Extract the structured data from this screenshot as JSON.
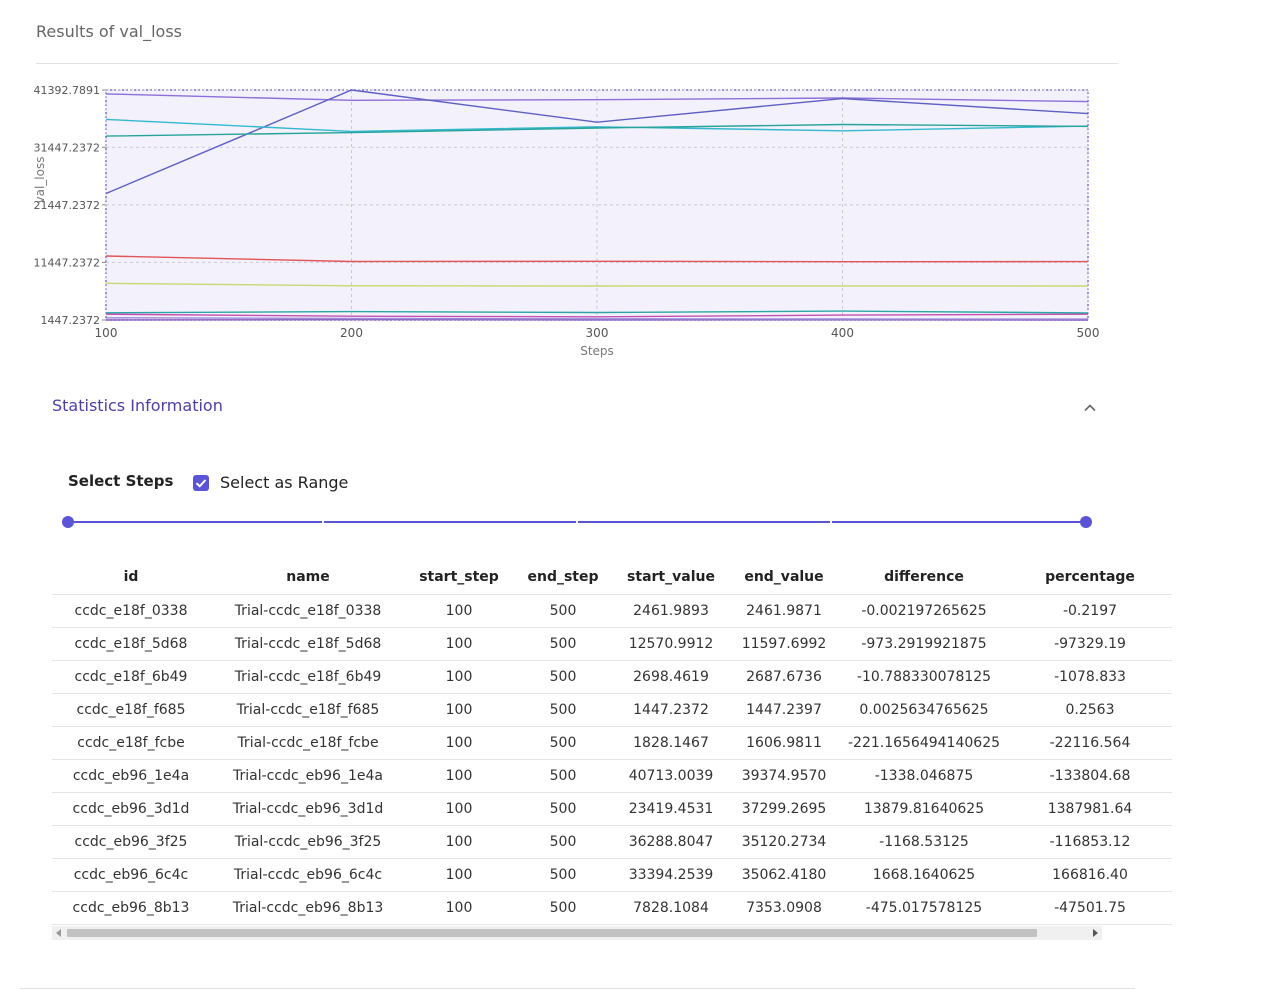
{
  "page": {
    "title": "Results of val_loss"
  },
  "chart_data": {
    "type": "line",
    "xlabel": "Steps",
    "ylabel": "val_loss",
    "x": [
      100,
      200,
      300,
      400,
      500
    ],
    "x_ticks": [
      "100",
      "200",
      "300",
      "400",
      "500"
    ],
    "y_ticks": [
      "41392.7891",
      "31447.2372",
      "21447.2372",
      "11447.2372",
      "1447.2372"
    ],
    "ylim": [
      1447.2372,
      41392.7891
    ],
    "grid": true,
    "series": [
      {
        "color": "#c44fb0",
        "values": [
          2461.9893,
          2100,
          2000,
          2300,
          2461.9871
        ]
      },
      {
        "color": "#e25555",
        "values": [
          12570.9912,
          11600,
          11650,
          11580,
          11597.6992
        ]
      },
      {
        "color": "#2ca6a4",
        "values": [
          2698.4619,
          2900,
          2750,
          3000,
          2687.6736
        ]
      },
      {
        "color": "#8b5fbf",
        "values": [
          1447.2372,
          1500,
          1460,
          1480,
          1447.2397
        ]
      },
      {
        "color": "#c8d96f",
        "values": [
          7828.1084,
          7380,
          7360,
          7370,
          7353.0908
        ]
      },
      {
        "color": "#8c6fd8",
        "values": [
          40713.0039,
          39600,
          39700,
          40000,
          39374.957
        ]
      },
      {
        "color": "#5f5fc4",
        "values": [
          23419.4531,
          41392.7891,
          35800,
          39900,
          37299.2695
        ]
      },
      {
        "color": "#35b8cf",
        "values": [
          36288.8047,
          34200,
          35000,
          34300,
          35120.2734
        ]
      },
      {
        "color": "#27a39a",
        "values": [
          33394.2539,
          34000,
          34800,
          35400,
          35062.418
        ]
      },
      {
        "color": "#9c8ad9",
        "values": [
          1828.1467,
          1700,
          1650,
          1620,
          1606.9811
        ]
      }
    ]
  },
  "stats": {
    "title": "Statistics Information"
  },
  "steps": {
    "label": "Select Steps",
    "range_label": "Select as Range",
    "range_checked": true
  },
  "table": {
    "columns": [
      "id",
      "name",
      "start_step",
      "end_step",
      "start_value",
      "end_value",
      "difference",
      "percentage"
    ],
    "rows": [
      [
        "ccdc_e18f_0338",
        "Trial-ccdc_e18f_0338",
        "100",
        "500",
        "2461.9893",
        "2461.9871",
        "-0.002197265625",
        "-0.2197"
      ],
      [
        "ccdc_e18f_5d68",
        "Trial-ccdc_e18f_5d68",
        "100",
        "500",
        "12570.9912",
        "11597.6992",
        "-973.2919921875",
        "-97329.19"
      ],
      [
        "ccdc_e18f_6b49",
        "Trial-ccdc_e18f_6b49",
        "100",
        "500",
        "2698.4619",
        "2687.6736",
        "-10.788330078125",
        "-1078.833"
      ],
      [
        "ccdc_e18f_f685",
        "Trial-ccdc_e18f_f685",
        "100",
        "500",
        "1447.2372",
        "1447.2397",
        "0.0025634765625",
        "0.2563"
      ],
      [
        "ccdc_e18f_fcbe",
        "Trial-ccdc_e18f_fcbe",
        "100",
        "500",
        "1828.1467",
        "1606.9811",
        "-221.1656494140625",
        "-22116.564"
      ],
      [
        "ccdc_eb96_1e4a",
        "Trial-ccdc_eb96_1e4a",
        "100",
        "500",
        "40713.0039",
        "39374.9570",
        "-1338.046875",
        "-133804.68"
      ],
      [
        "ccdc_eb96_3d1d",
        "Trial-ccdc_eb96_3d1d",
        "100",
        "500",
        "23419.4531",
        "37299.2695",
        "13879.81640625",
        "1387981.64"
      ],
      [
        "ccdc_eb96_3f25",
        "Trial-ccdc_eb96_3f25",
        "100",
        "500",
        "36288.8047",
        "35120.2734",
        "-1168.53125",
        "-116853.12"
      ],
      [
        "ccdc_eb96_6c4c",
        "Trial-ccdc_eb96_6c4c",
        "100",
        "500",
        "33394.2539",
        "35062.4180",
        "1668.1640625",
        "166816.40"
      ],
      [
        "ccdc_eb96_8b13",
        "Trial-ccdc_eb96_8b13",
        "100",
        "500",
        "7828.1084",
        "7353.0908",
        "-475.017578125",
        "-47501.75"
      ]
    ]
  }
}
